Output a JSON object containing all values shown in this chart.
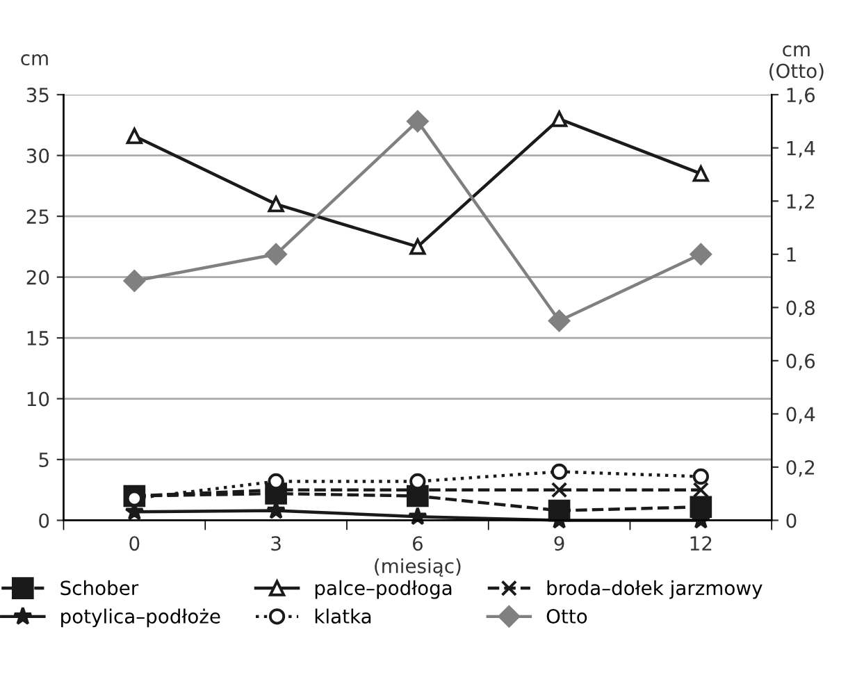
{
  "chart_data": {
    "type": "line",
    "xlabel": "(miesiąc)",
    "ylabel": "cm",
    "y2label": "cm\n(Otto)",
    "categories": [
      "0",
      "3",
      "6",
      "9",
      "12"
    ],
    "ylim": [
      0,
      35
    ],
    "yticks": [
      0,
      5,
      10,
      15,
      20,
      25,
      30,
      35
    ],
    "y2lim": [
      0,
      1.6
    ],
    "y2ticks": [
      0,
      {
        "value": 0.2,
        "label": "0,2"
      },
      {
        "value": 0.4,
        "label": "0,4"
      },
      {
        "value": 0.6,
        "label": "0,6"
      },
      {
        "value": 0.8,
        "label": "0,8"
      },
      1,
      {
        "value": 1.2,
        "label": "1,2"
      },
      {
        "value": 1.4,
        "label": "1,4"
      },
      {
        "value": 1.6,
        "label": "1,6"
      }
    ],
    "grid": "y",
    "legend": "bottom",
    "series": [
      {
        "name": "Schober",
        "color": "#1a1a1a",
        "marker": "square",
        "line_style": "dashed",
        "values": [
          2.0,
          2.2,
          2.0,
          0.8,
          1.1
        ]
      },
      {
        "name": "palce–podłoga",
        "color": "#1a1a1a",
        "marker": "triangle",
        "line_style": "solid",
        "values": [
          31.6,
          26.0,
          22.5,
          33.0,
          28.5
        ]
      },
      {
        "name": "broda–dołek jarzmowy",
        "color": "#1a1a1a",
        "marker": "cross",
        "line_style": "dashed",
        "values": [
          2.0,
          2.5,
          2.5,
          2.5,
          2.5
        ]
      },
      {
        "name": "potylica–podłoże",
        "color": "#1a1a1a",
        "marker": "star",
        "line_style": "solid",
        "values": [
          0.7,
          0.8,
          0.3,
          0.0,
          0.0
        ]
      },
      {
        "name": "klatka",
        "color": "#1a1a1a",
        "marker": "circle",
        "line_style": "dotted",
        "values": [
          1.8,
          3.2,
          3.2,
          4.0,
          3.6
        ]
      },
      {
        "name": "Otto",
        "color": "#808080",
        "marker": "diamond",
        "line_style": "solid",
        "axis": "y2",
        "values": [
          0.9,
          1.0,
          1.5,
          0.75,
          1.0
        ]
      }
    ]
  }
}
